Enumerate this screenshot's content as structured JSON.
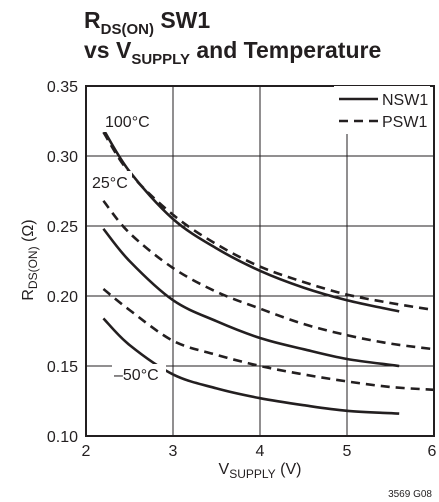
{
  "chart_data": {
    "type": "line",
    "title": {
      "line1": {
        "main": "R",
        "sub": "DS(ON)",
        "rest": " SW1"
      },
      "line2": {
        "pre": "vs V",
        "sub": "SUPPLY",
        "rest": " and Temperature"
      }
    },
    "xlabel": {
      "main": "V",
      "sub": "SUPPLY",
      "rest": " (V)"
    },
    "ylabel": {
      "main": "R",
      "sub": "DS(ON)",
      "rest": " (Ω)"
    },
    "xlim": [
      2,
      6
    ],
    "ylim": [
      0.1,
      0.35
    ],
    "xticks": [
      2,
      3,
      4,
      5,
      6
    ],
    "yticks": [
      0.1,
      0.15,
      0.2,
      0.25,
      0.3,
      0.35
    ],
    "xtick_labels": [
      "2",
      "3",
      "4",
      "5",
      "6"
    ],
    "ytick_labels": [
      "0.10",
      "0.15",
      "0.20",
      "0.25",
      "0.30",
      "0.35"
    ],
    "grid": true,
    "legend": {
      "position": "top-right",
      "entries": [
        {
          "label": "NSW1",
          "style": "solid"
        },
        {
          "label": "PSW1",
          "style": "dashed"
        }
      ]
    },
    "annotations": {
      "temp_high": "100°C",
      "temp_mid": "25°C",
      "temp_low": "–50°C"
    },
    "series": [
      {
        "device": "NSW1",
        "temp": "100°C",
        "style": "solid",
        "points": [
          [
            2.2,
            0.319
          ],
          [
            2.5,
            0.289
          ],
          [
            3.0,
            0.255
          ],
          [
            3.5,
            0.234
          ],
          [
            4.0,
            0.218
          ],
          [
            4.5,
            0.206
          ],
          [
            5.0,
            0.197
          ],
          [
            5.6,
            0.189
          ]
        ]
      },
      {
        "device": "PSW1",
        "temp": "100°C",
        "style": "dashed",
        "points": [
          [
            2.2,
            0.317
          ],
          [
            2.5,
            0.288
          ],
          [
            3.0,
            0.258
          ],
          [
            3.5,
            0.237
          ],
          [
            4.0,
            0.221
          ],
          [
            4.5,
            0.21
          ],
          [
            5.0,
            0.201
          ],
          [
            5.5,
            0.195
          ],
          [
            6.0,
            0.19
          ]
        ]
      },
      {
        "device": "PSW1",
        "temp": "25°C",
        "style": "dashed",
        "points": [
          [
            2.2,
            0.268
          ],
          [
            2.5,
            0.245
          ],
          [
            3.0,
            0.22
          ],
          [
            3.5,
            0.203
          ],
          [
            4.0,
            0.191
          ],
          [
            4.5,
            0.18
          ],
          [
            5.0,
            0.172
          ],
          [
            5.5,
            0.166
          ],
          [
            6.0,
            0.162
          ]
        ]
      },
      {
        "device": "NSW1",
        "temp": "25°C",
        "style": "solid",
        "points": [
          [
            2.2,
            0.248
          ],
          [
            2.5,
            0.225
          ],
          [
            3.0,
            0.197
          ],
          [
            3.5,
            0.182
          ],
          [
            4.0,
            0.17
          ],
          [
            4.5,
            0.162
          ],
          [
            5.0,
            0.155
          ],
          [
            5.6,
            0.15
          ]
        ]
      },
      {
        "device": "PSW1",
        "temp": "–50°C",
        "style": "dashed",
        "points": [
          [
            2.2,
            0.205
          ],
          [
            2.5,
            0.19
          ],
          [
            3.0,
            0.168
          ],
          [
            3.5,
            0.158
          ],
          [
            4.0,
            0.15
          ],
          [
            4.5,
            0.144
          ],
          [
            5.0,
            0.139
          ],
          [
            5.5,
            0.135
          ],
          [
            6.0,
            0.133
          ]
        ]
      },
      {
        "device": "NSW1",
        "temp": "–50°C",
        "style": "solid",
        "points": [
          [
            2.2,
            0.184
          ],
          [
            2.5,
            0.165
          ],
          [
            3.0,
            0.144
          ],
          [
            3.5,
            0.134
          ],
          [
            4.0,
            0.127
          ],
          [
            4.5,
            0.122
          ],
          [
            5.0,
            0.118
          ],
          [
            5.6,
            0.116
          ]
        ]
      }
    ],
    "figure_code": "3569 G08",
    "colors": {
      "ink": "#231f20",
      "background": "#ffffff"
    }
  }
}
